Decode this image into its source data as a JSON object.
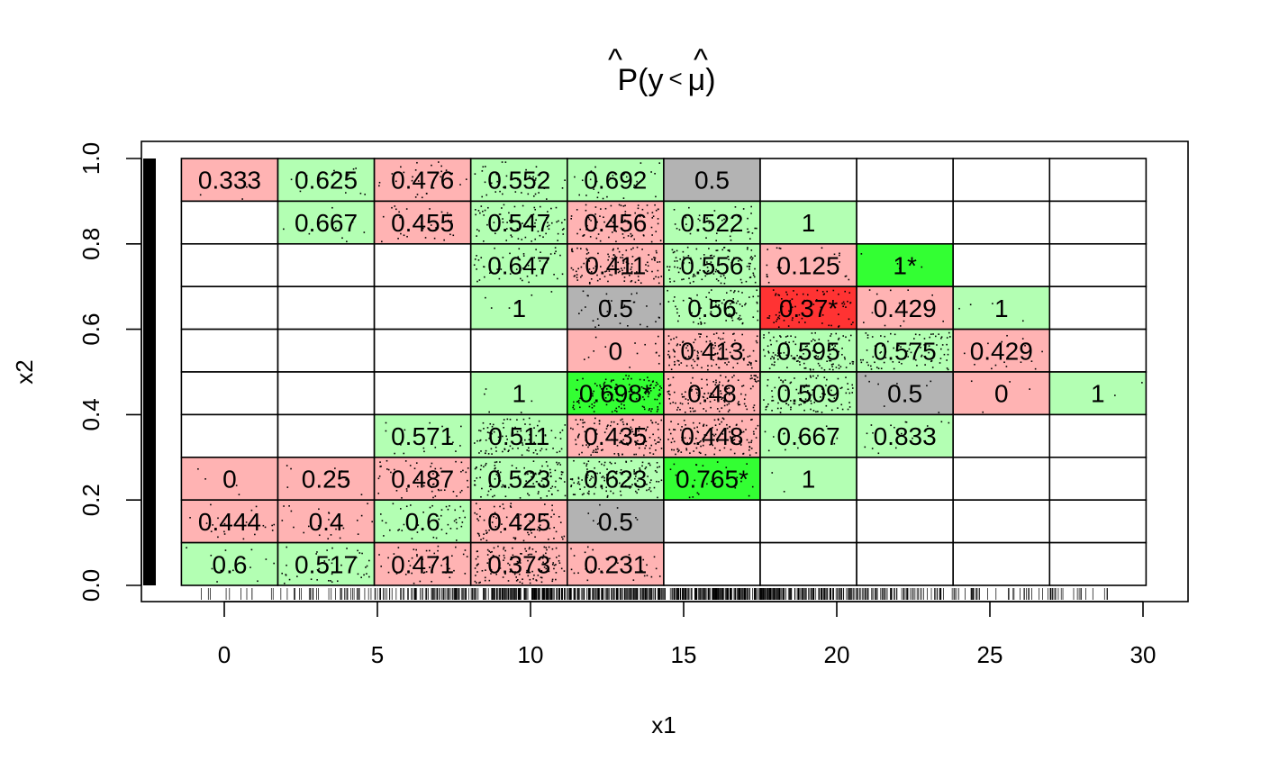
{
  "chart_data": {
    "type": "heatmap",
    "title": {
      "base": "P",
      "hat": "^",
      "open": "(y",
      "lt": "<",
      "mu": "μ",
      "close": ")"
    },
    "xlabel": "x1",
    "ylabel": "x2",
    "xlim": [
      -2.7,
      31.5
    ],
    "ylim": [
      -0.03,
      1.04
    ],
    "x_ticks": [
      0,
      5,
      10,
      15,
      20,
      25,
      30
    ],
    "x_tick_labels": [
      "0",
      "5",
      "10",
      "15",
      "20",
      "25",
      "30"
    ],
    "y_ticks": [
      0.0,
      0.2,
      0.4,
      0.6,
      0.8,
      1.0
    ],
    "y_tick_labels": [
      "0.0",
      "0.2",
      "0.4",
      "0.6",
      "0.8",
      "1.0"
    ],
    "x_bin_edges": [
      -1.4,
      1.75,
      4.9,
      8.05,
      11.2,
      14.35,
      17.5,
      20.65,
      23.8,
      26.95,
      30.1
    ],
    "y_bin_edges": [
      0.0,
      0.1,
      0.2,
      0.3,
      0.4,
      0.5,
      0.6,
      0.7,
      0.8,
      0.9,
      1.0
    ],
    "grid": false,
    "rug": true,
    "colors": {
      "light_green": "#b3ffb3",
      "bright_green": "#33ff33",
      "light_red": "#ffb3b3",
      "bright_red": "#ff3333",
      "gray": "#b3b3b3",
      "empty": "#ffffff"
    },
    "cells_note_rows": "rows listed from top (x2 0.9-1.0) to bottom (x2 0.0-0.1); empty string = no data",
    "cells": [
      [
        "0.333",
        "0.625",
        "0.476",
        "0.552",
        "0.692",
        "0.5",
        "",
        "",
        "",
        ""
      ],
      [
        "",
        "0.667",
        "0.455",
        "0.547",
        "0.456",
        "0.522",
        "1",
        "",
        "",
        ""
      ],
      [
        "",
        "",
        "",
        "0.647",
        "0.411",
        "0.556",
        "0.125",
        "1*",
        "",
        ""
      ],
      [
        "",
        "",
        "",
        "1",
        "0.5",
        "0.56",
        "0.37*",
        "0.429",
        "1",
        ""
      ],
      [
        "",
        "",
        "",
        "",
        "0",
        "0.413",
        "0.595",
        "0.575",
        "0.429",
        ""
      ],
      [
        "",
        "",
        "",
        "1",
        "0.698*",
        "0.48",
        "0.509",
        "0.5",
        "0",
        "1"
      ],
      [
        "",
        "",
        "0.571",
        "0.511",
        "0.435",
        "0.448",
        "0.667",
        "0.833",
        "",
        ""
      ],
      [
        "0",
        "0.25",
        "0.487",
        "0.523",
        "0.623",
        "0.765*",
        "1",
        "",
        "",
        ""
      ],
      [
        "0.444",
        "0.4",
        "0.6",
        "0.425",
        "0.5",
        "",
        "",
        "",
        "",
        ""
      ],
      [
        "0.6",
        "0.517",
        "0.471",
        "0.373",
        "0.231",
        "",
        "",
        "",
        "",
        ""
      ]
    ],
    "cell_colors": [
      [
        "light_red",
        "light_green",
        "light_red",
        "light_green",
        "light_green",
        "gray",
        "empty",
        "empty",
        "empty",
        "empty"
      ],
      [
        "empty",
        "light_green",
        "light_red",
        "light_green",
        "light_red",
        "light_green",
        "light_green",
        "empty",
        "empty",
        "empty"
      ],
      [
        "empty",
        "empty",
        "empty",
        "light_green",
        "light_red",
        "light_green",
        "light_red",
        "bright_green",
        "empty",
        "empty"
      ],
      [
        "empty",
        "empty",
        "empty",
        "light_green",
        "gray",
        "light_green",
        "bright_red",
        "light_red",
        "light_green",
        "empty"
      ],
      [
        "empty",
        "empty",
        "empty",
        "empty",
        "light_red",
        "light_red",
        "light_green",
        "light_green",
        "light_red",
        "empty"
      ],
      [
        "empty",
        "empty",
        "empty",
        "light_green",
        "bright_green",
        "light_red",
        "light_green",
        "gray",
        "light_red",
        "light_green"
      ],
      [
        "empty",
        "empty",
        "light_green",
        "light_green",
        "light_red",
        "light_red",
        "light_green",
        "light_green",
        "empty",
        "empty"
      ],
      [
        "light_red",
        "light_red",
        "light_red",
        "light_green",
        "light_green",
        "bright_green",
        "light_green",
        "empty",
        "empty",
        "empty"
      ],
      [
        "light_red",
        "light_red",
        "light_green",
        "light_red",
        "gray",
        "empty",
        "empty",
        "empty",
        "empty",
        "empty"
      ],
      [
        "light_green",
        "light_green",
        "light_red",
        "light_red",
        "light_red",
        "empty",
        "empty",
        "empty",
        "empty",
        "empty"
      ]
    ],
    "dot_density_rows_top_to_bottom": [
      [
        2,
        6,
        14,
        20,
        14,
        0,
        0,
        0,
        0,
        0
      ],
      [
        0,
        4,
        14,
        36,
        40,
        18,
        0,
        0,
        0,
        0
      ],
      [
        0,
        0,
        0,
        24,
        60,
        54,
        10,
        2,
        0,
        0
      ],
      [
        0,
        0,
        0,
        3,
        14,
        40,
        36,
        7,
        2,
        0
      ],
      [
        0,
        0,
        0,
        0,
        8,
        60,
        60,
        40,
        8,
        0
      ],
      [
        0,
        0,
        0,
        3,
        60,
        60,
        48,
        4,
        2,
        1
      ],
      [
        0,
        0,
        8,
        46,
        60,
        60,
        6,
        8,
        0,
        0
      ],
      [
        2,
        4,
        28,
        50,
        60,
        12,
        1,
        0,
        0,
        0
      ],
      [
        10,
        12,
        22,
        36,
        4,
        0,
        0,
        0,
        0,
        0
      ],
      [
        6,
        20,
        24,
        60,
        14,
        0,
        0,
        0,
        0,
        0
      ]
    ]
  }
}
